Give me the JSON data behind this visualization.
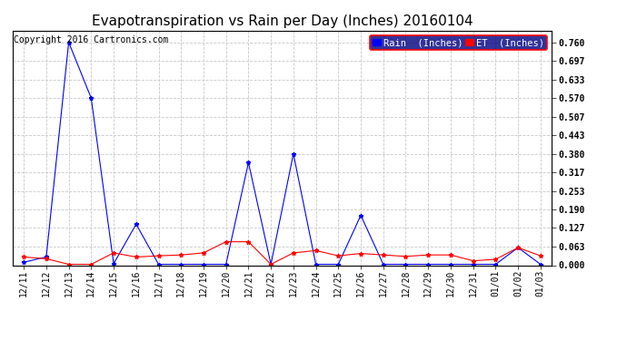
{
  "title": "Evapotranspiration vs Rain per Day (Inches) 20160104",
  "copyright": "Copyright 2016 Cartronics.com",
  "x_labels": [
    "12/11",
    "12/12",
    "12/13",
    "12/14",
    "12/15",
    "12/16",
    "12/17",
    "12/18",
    "12/19",
    "12/20",
    "12/21",
    "12/22",
    "12/23",
    "12/24",
    "12/25",
    "12/26",
    "12/27",
    "12/28",
    "12/29",
    "12/30",
    "12/31",
    "01/01",
    "01/02",
    "01/03"
  ],
  "rain_values": [
    0.01,
    0.028,
    0.76,
    0.57,
    0.005,
    0.14,
    0.003,
    0.003,
    0.003,
    0.003,
    0.35,
    0.003,
    0.38,
    0.003,
    0.003,
    0.17,
    0.003,
    0.003,
    0.003,
    0.003,
    0.003,
    0.003,
    0.06,
    0.003
  ],
  "et_values": [
    0.028,
    0.022,
    0.003,
    0.003,
    0.042,
    0.028,
    0.032,
    0.035,
    0.042,
    0.08,
    0.08,
    0.003,
    0.042,
    0.05,
    0.032,
    0.04,
    0.035,
    0.03,
    0.035,
    0.035,
    0.015,
    0.02,
    0.06,
    0.032
  ],
  "rain_color": "#0000ff",
  "et_color": "#ff0000",
  "background_color": "#ffffff",
  "grid_color": "#c8c8c8",
  "yticks": [
    0.0,
    0.063,
    0.127,
    0.19,
    0.253,
    0.317,
    0.38,
    0.443,
    0.507,
    0.57,
    0.633,
    0.697,
    0.76
  ],
  "ylim": [
    0.0,
    0.8
  ],
  "legend_rain_label": "Rain  (Inches)",
  "legend_et_label": "ET  (Inches)",
  "title_fontsize": 11,
  "copyright_fontsize": 7,
  "tick_fontsize": 7,
  "legend_fontsize": 7.5
}
